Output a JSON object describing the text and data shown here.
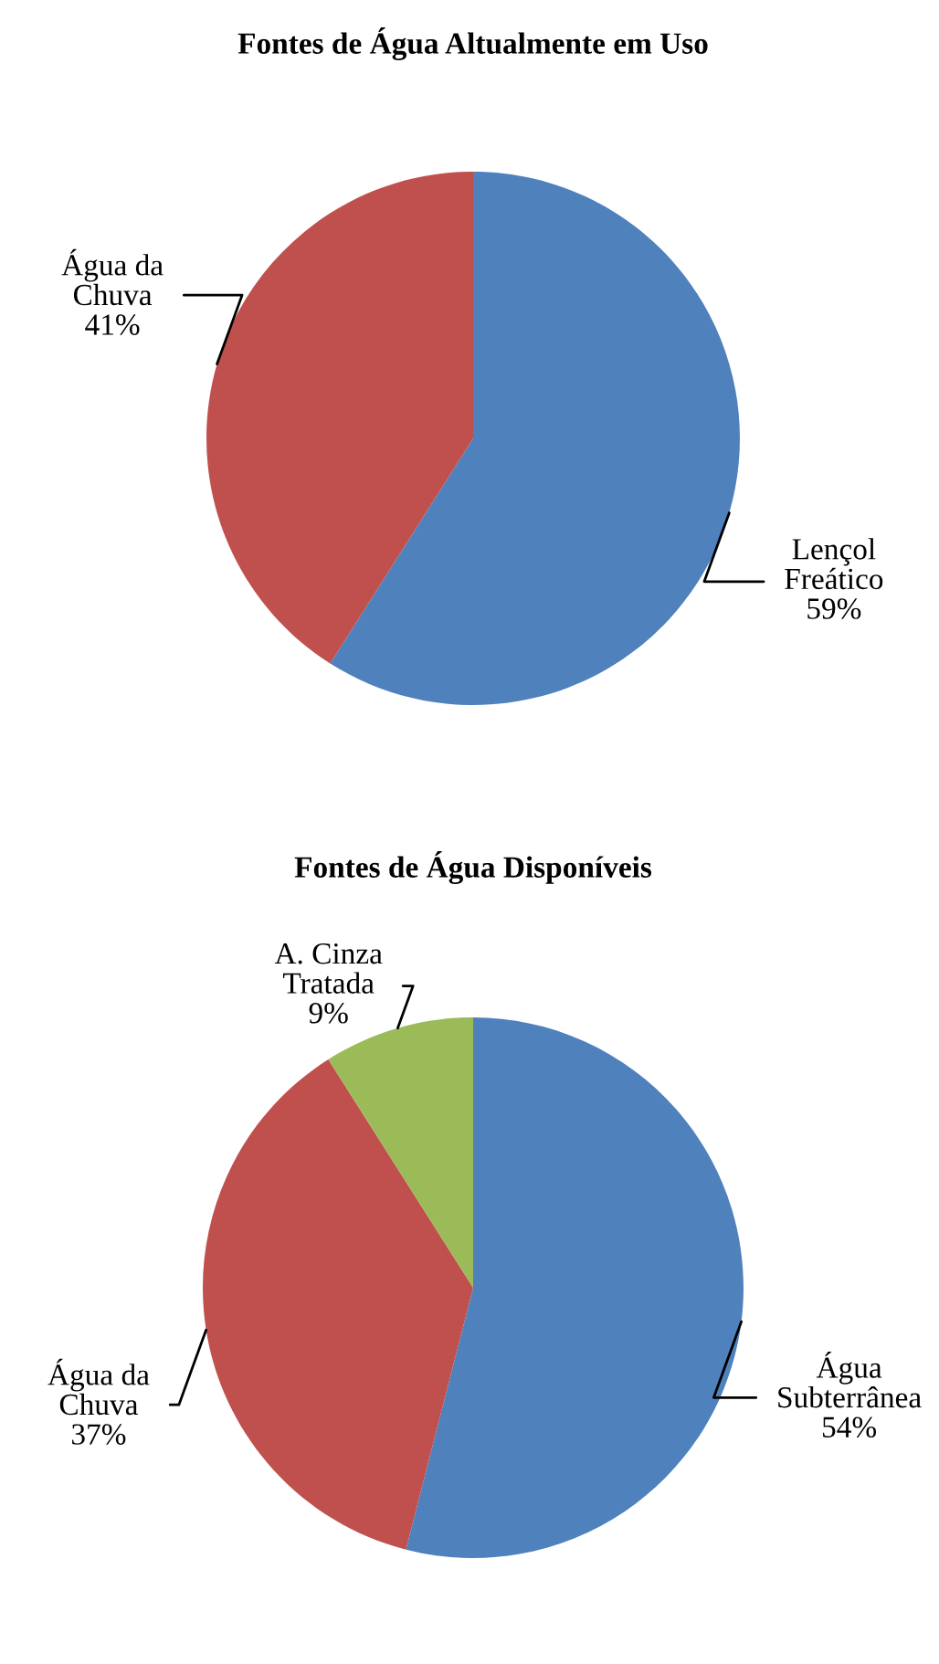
{
  "chart_data": [
    {
      "type": "pie",
      "title": "Fontes de Água Altualmente em Uso",
      "categories": [
        "Lençol\nFreático",
        "Água da\nChuva"
      ],
      "values": [
        59,
        41
      ],
      "colors": [
        "#4f81bd",
        "#c0504d"
      ],
      "value_labels": [
        "59%",
        "41%"
      ]
    },
    {
      "type": "pie",
      "title": "Fontes de Água Disponíveis",
      "categories": [
        "Água\nSubterrânea",
        "Água da\nChuva",
        "A. Cinza\nTratada"
      ],
      "values": [
        54,
        37,
        9
      ],
      "colors": [
        "#4f81bd",
        "#c0504d",
        "#9bbb59"
      ],
      "value_labels": [
        "54%",
        "37%",
        "9%"
      ]
    }
  ]
}
